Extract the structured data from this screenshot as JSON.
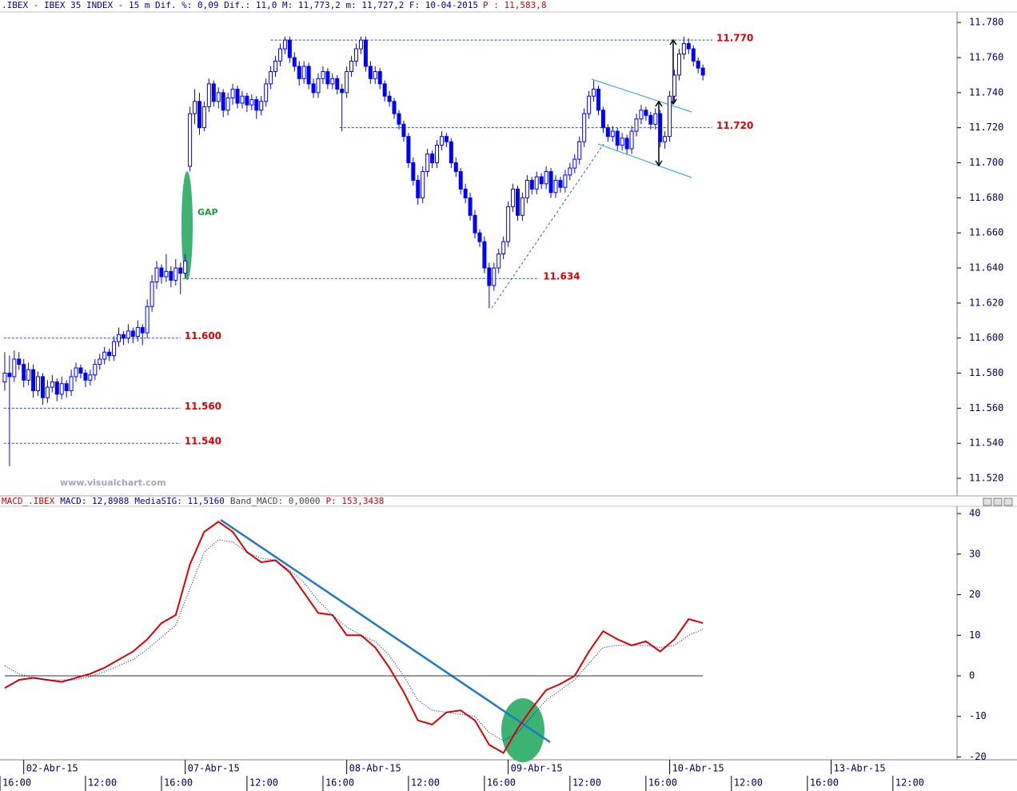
{
  "chart_data": [
    {
      "type": "candlestick",
      "title": ".IBEX - IBEX 35 INDEX -  15 m Dif. %: 0,09 Dif.: 11,0 M: 11,773,2 m: 11,727,2 F: 10-04-2015",
      "title_price": "P : 11,583,8",
      "annotation": "GAP",
      "watermark": "www.visualchart.com",
      "up_color": "#ffffff",
      "down_color": "#0000ff",
      "ylim": [
        11510,
        11786
      ],
      "yticks": [
        {
          "value": 11520,
          "label": "11.520"
        },
        {
          "value": 11540,
          "label": "11.540"
        },
        {
          "value": 11560,
          "label": "11.560"
        },
        {
          "value": 11580,
          "label": "11.580"
        },
        {
          "value": 11600,
          "label": "11.600"
        },
        {
          "value": 11620,
          "label": "11.620"
        },
        {
          "value": 11640,
          "label": "11.640"
        },
        {
          "value": 11660,
          "label": "11.660"
        },
        {
          "value": 11680,
          "label": "11.680"
        },
        {
          "value": 11700,
          "label": "11.700"
        },
        {
          "value": 11720,
          "label": "11.720"
        },
        {
          "value": 11740,
          "label": "11.740"
        },
        {
          "value": 11760,
          "label": "11.760"
        },
        {
          "value": 11780,
          "label": "11.780"
        }
      ],
      "levels": [
        {
          "value": 11770,
          "label": "11.770",
          "x0": 56,
          "x1": 149
        },
        {
          "value": 11720,
          "label": "11.720",
          "x0": 70.5,
          "x1": 149
        },
        {
          "value": 11634,
          "label": "11.634",
          "x0": 37.5,
          "x1": 112.5
        },
        {
          "value": 11600,
          "label": "11.600",
          "x0": -0.2,
          "x1": 37
        },
        {
          "value": 11560,
          "label": "11.560",
          "x0": -0.2,
          "x1": 37
        },
        {
          "value": 11540,
          "label": "11.540",
          "x0": -0.2,
          "x1": 37
        }
      ],
      "ohlc": [
        [
          11575,
          11592,
          11570,
          11580
        ],
        [
          11580,
          11590,
          11527,
          11578
        ],
        [
          11578,
          11593,
          11575,
          11588
        ],
        [
          11588,
          11592,
          11582,
          11585
        ],
        [
          11585,
          11588,
          11572,
          11576
        ],
        [
          11576,
          11586,
          11573,
          11582
        ],
        [
          11582,
          11585,
          11566,
          11570
        ],
        [
          11570,
          11581,
          11567,
          11578
        ],
        [
          11578,
          11580,
          11562,
          11566
        ],
        [
          11566,
          11576,
          11563,
          11572
        ],
        [
          11572,
          11579,
          11569,
          11575
        ],
        [
          11575,
          11577,
          11564,
          11568
        ],
        [
          11568,
          11578,
          11565,
          11574
        ],
        [
          11574,
          11576,
          11566,
          11570
        ],
        [
          11570,
          11582,
          11567,
          11578
        ],
        [
          11578,
          11586,
          11575,
          11583
        ],
        [
          11583,
          11585,
          11577,
          11580
        ],
        [
          11580,
          11582,
          11572,
          11576
        ],
        [
          11576,
          11582,
          11573,
          11579
        ],
        [
          11579,
          11588,
          11576,
          11585
        ],
        [
          11585,
          11591,
          11582,
          11588
        ],
        [
          11588,
          11595,
          11585,
          11592
        ],
        [
          11592,
          11594,
          11587,
          11590
        ],
        [
          11590,
          11601,
          11587,
          11598
        ],
        [
          11598,
          11606,
          11595,
          11602
        ],
        [
          11602,
          11604,
          11596,
          11600
        ],
        [
          11600,
          11608,
          11597,
          11604
        ],
        [
          11604,
          11606,
          11597,
          11601
        ],
        [
          11601,
          11610,
          11598,
          11606
        ],
        [
          11606,
          11608,
          11596,
          11603
        ],
        [
          11603,
          11622,
          11600,
          11618
        ],
        [
          11618,
          11636,
          11615,
          11632
        ],
        [
          11632,
          11644,
          11628,
          11640
        ],
        [
          11640,
          11642,
          11631,
          11635
        ],
        [
          11635,
          11648,
          11632,
          11638
        ],
        [
          11638,
          11641,
          11629,
          11633
        ],
        [
          11633,
          11645,
          11630,
          11640
        ],
        [
          11640,
          11643,
          11625,
          11637
        ],
        [
          11637,
          11648,
          11634,
          11644
        ],
        [
          11698,
          11732,
          11695,
          11728
        ],
        [
          11728,
          11742,
          11722,
          11735
        ],
        [
          11735,
          11740,
          11716,
          11720
        ],
        [
          11720,
          11735,
          11718,
          11732
        ],
        [
          11732,
          11748,
          11729,
          11745
        ],
        [
          11745,
          11747,
          11732,
          11735
        ],
        [
          11735,
          11743,
          11731,
          11740
        ],
        [
          11740,
          11742,
          11726,
          11730
        ],
        [
          11730,
          11740,
          11727,
          11737
        ],
        [
          11737,
          11745,
          11733,
          11742
        ],
        [
          11742,
          11744,
          11731,
          11734
        ],
        [
          11734,
          11741,
          11731,
          11738
        ],
        [
          11738,
          11740,
          11729,
          11733
        ],
        [
          11733,
          11739,
          11730,
          11736
        ],
        [
          11736,
          11738,
          11725,
          11730
        ],
        [
          11730,
          11738,
          11727,
          11735
        ],
        [
          11735,
          11748,
          11732,
          11745
        ],
        [
          11745,
          11755,
          11742,
          11752
        ],
        [
          11752,
          11761,
          11749,
          11758
        ],
        [
          11758,
          11768,
          11755,
          11765
        ],
        [
          11765,
          11772,
          11762,
          11770
        ],
        [
          11770,
          11772,
          11757,
          11760
        ],
        [
          11760,
          11763,
          11752,
          11755
        ],
        [
          11755,
          11758,
          11744,
          11748
        ],
        [
          11748,
          11758,
          11745,
          11755
        ],
        [
          11755,
          11757,
          11742,
          11745
        ],
        [
          11745,
          11748,
          11737,
          11740
        ],
        [
          11740,
          11751,
          11737,
          11748
        ],
        [
          11748,
          11755,
          11745,
          11752
        ],
        [
          11752,
          11754,
          11742,
          11745
        ],
        [
          11745,
          11751,
          11742,
          11748
        ],
        [
          11748,
          11750,
          11739,
          11742
        ],
        [
          11742,
          11745,
          11718,
          11740
        ],
        [
          11740,
          11755,
          11737,
          11752
        ],
        [
          11752,
          11761,
          11749,
          11758
        ],
        [
          11758,
          11768,
          11755,
          11765
        ],
        [
          11765,
          11772,
          11762,
          11770
        ],
        [
          11770,
          11772,
          11752,
          11755
        ],
        [
          11755,
          11758,
          11745,
          11748
        ],
        [
          11748,
          11755,
          11745,
          11752
        ],
        [
          11752,
          11754,
          11742,
          11745
        ],
        [
          11745,
          11747,
          11735,
          11738
        ],
        [
          11738,
          11741,
          11732,
          11735
        ],
        [
          11735,
          11737,
          11725,
          11728
        ],
        [
          11728,
          11730,
          11719,
          11722
        ],
        [
          11722,
          11724,
          11712,
          11715
        ],
        [
          11715,
          11717,
          11697,
          11700
        ],
        [
          11700,
          11703,
          11687,
          11690
        ],
        [
          11690,
          11693,
          11676,
          11680
        ],
        [
          11680,
          11698,
          11677,
          11695
        ],
        [
          11695,
          11708,
          11692,
          11705
        ],
        [
          11705,
          11707,
          11697,
          11700
        ],
        [
          11700,
          11713,
          11697,
          11710
        ],
        [
          11710,
          11718,
          11707,
          11715
        ],
        [
          11715,
          11717,
          11709,
          11712
        ],
        [
          11712,
          11714,
          11697,
          11700
        ],
        [
          11700,
          11703,
          11692,
          11695
        ],
        [
          11695,
          11697,
          11682,
          11685
        ],
        [
          11685,
          11688,
          11677,
          11680
        ],
        [
          11680,
          11683,
          11667,
          11670
        ],
        [
          11670,
          11673,
          11657,
          11660
        ],
        [
          11660,
          11662,
          11652,
          11655
        ],
        [
          11655,
          11658,
          11637,
          11640
        ],
        [
          11640,
          11643,
          11617,
          11630
        ],
        [
          11630,
          11643,
          11627,
          11640
        ],
        [
          11640,
          11651,
          11637,
          11648
        ],
        [
          11648,
          11658,
          11645,
          11655
        ],
        [
          11655,
          11678,
          11652,
          11675
        ],
        [
          11675,
          11688,
          11672,
          11685
        ],
        [
          11685,
          11687,
          11667,
          11670
        ],
        [
          11670,
          11683,
          11667,
          11680
        ],
        [
          11680,
          11693,
          11677,
          11690
        ],
        [
          11690,
          11692,
          11682,
          11685
        ],
        [
          11685,
          11695,
          11682,
          11692
        ],
        [
          11692,
          11694,
          11685,
          11688
        ],
        [
          11688,
          11698,
          11685,
          11695
        ],
        [
          11695,
          11697,
          11680,
          11683
        ],
        [
          11683,
          11693,
          11680,
          11690
        ],
        [
          11690,
          11692,
          11683,
          11686
        ],
        [
          11686,
          11696,
          11683,
          11693
        ],
        [
          11693,
          11700,
          11690,
          11697
        ],
        [
          11697,
          11705,
          11694,
          11702
        ],
        [
          11702,
          11715,
          11699,
          11712
        ],
        [
          11712,
          11731,
          11709,
          11728
        ],
        [
          11728,
          11741,
          11725,
          11738
        ],
        [
          11738,
          11747,
          11735,
          11742
        ],
        [
          11742,
          11744,
          11727,
          11730
        ],
        [
          11730,
          11732,
          11717,
          11720
        ],
        [
          11720,
          11722,
          11712,
          11715
        ],
        [
          11715,
          11721,
          11712,
          11718
        ],
        [
          11718,
          11720,
          11707,
          11710
        ],
        [
          11710,
          11717,
          11707,
          11714
        ],
        [
          11714,
          11716,
          11705,
          11708
        ],
        [
          11708,
          11721,
          11705,
          11718
        ],
        [
          11718,
          11728,
          11715,
          11725
        ],
        [
          11725,
          11733,
          11722,
          11730
        ],
        [
          11730,
          11732,
          11724,
          11727
        ],
        [
          11727,
          11729,
          11719,
          11722
        ],
        [
          11722,
          11731,
          11719,
          11728
        ],
        [
          11728,
          11730,
          11709,
          11712
        ],
        [
          11712,
          11718,
          11708,
          11715
        ],
        [
          11715,
          11741,
          11712,
          11738
        ],
        [
          11738,
          11753,
          11735,
          11750
        ],
        [
          11750,
          11765,
          11747,
          11762
        ],
        [
          11762,
          11772,
          11759,
          11768
        ],
        [
          11768,
          11771,
          11762,
          11765
        ],
        [
          11765,
          11767,
          11755,
          11758
        ],
        [
          11758,
          11760,
          11751,
          11754
        ],
        [
          11754,
          11756,
          11747,
          11750
        ]
      ]
    },
    {
      "type": "line",
      "header": [
        {
          "text": "MACD_.IBEX",
          "color": "#cc0000"
        },
        {
          "text": "MACD: 12,8988",
          "color": "#0000aa"
        },
        {
          "text": "MediaSIG: 11,5160",
          "color": "#0000aa"
        },
        {
          "text": "Band_MACD: 0,0000",
          "color": "#444444"
        },
        {
          "text": "P: 153,3438",
          "color": "#cc0000"
        }
      ],
      "band": 0,
      "ylim": [
        -20.7,
        41.8
      ],
      "yticks": [
        40,
        30,
        20,
        10,
        0,
        -10,
        -20
      ],
      "x": [
        0,
        3,
        6,
        9,
        12,
        15,
        18,
        21,
        24,
        27,
        30,
        33,
        36,
        39,
        42,
        45,
        48,
        51,
        54,
        57,
        60,
        63,
        66,
        69,
        72,
        75,
        78,
        81,
        84,
        87,
        90,
        93,
        96,
        99,
        102,
        105,
        108,
        111,
        114,
        117,
        120,
        123,
        126,
        129,
        132,
        135,
        138,
        141,
        144,
        147
      ],
      "series": [
        {
          "color": "#dd0000",
          "style": "solid",
          "values": [
            -3,
            -1,
            -0.5,
            -1,
            -1.5,
            -0.5,
            0.5,
            2,
            4,
            6,
            9,
            13,
            15,
            27.5,
            35.5,
            38,
            35.5,
            30.5,
            28,
            28.5,
            25.5,
            20.5,
            15.5,
            15,
            10,
            10,
            7,
            2,
            -4,
            -11,
            -12,
            -9,
            -8.5,
            -11,
            -17,
            -19,
            -13,
            -8,
            -3.5,
            -2,
            0,
            6,
            11,
            9,
            7.5,
            8.5,
            6,
            9,
            14,
            13
          ]
        },
        {
          "color": "#0000cc",
          "style": "dotted",
          "values": [
            2.5,
            0.5,
            -0.5,
            -1,
            -1,
            -1,
            -0.2,
            1,
            2.5,
            4,
            6.5,
            9.5,
            12.5,
            21.5,
            30.5,
            33.5,
            33,
            30.5,
            29,
            28.5,
            26,
            23,
            18.5,
            15,
            12,
            10,
            8.5,
            5,
            0,
            -6,
            -8.5,
            -9,
            -9.5,
            -10,
            -14,
            -16,
            -14,
            -10,
            -6,
            -3.5,
            -1,
            3,
            7,
            7.5,
            7.5,
            7.5,
            7,
            7.5,
            10,
            11.5
          ]
        }
      ]
    }
  ],
  "x_axis": {
    "xlim": [
      -1,
      200
    ],
    "date_ticks": [
      {
        "value": 4,
        "label": "02-Abr-15"
      },
      {
        "value": 38,
        "label": "07-Abr-15"
      },
      {
        "value": 72,
        "label": "08-Abr-15"
      },
      {
        "value": 106,
        "label": "09-Abr-15"
      },
      {
        "value": 140,
        "label": "10-Abr-15"
      },
      {
        "value": 174,
        "label": "13-Abr-15"
      }
    ],
    "time_ticks": [
      {
        "value": -1,
        "label": "16:00"
      },
      {
        "value": 17,
        "label": "12:00"
      },
      {
        "value": 33,
        "label": "16:00"
      },
      {
        "value": 51,
        "label": "12:00"
      },
      {
        "value": 67,
        "label": "16:00"
      },
      {
        "value": 85,
        "label": "12:00"
      },
      {
        "value": 101,
        "label": "16:00"
      },
      {
        "value": 119,
        "label": "12:00"
      },
      {
        "value": 135,
        "label": "16:00"
      },
      {
        "value": 153,
        "label": "12:00"
      },
      {
        "value": 169,
        "label": "16:00"
      },
      {
        "value": 187,
        "label": "12:00"
      }
    ]
  }
}
